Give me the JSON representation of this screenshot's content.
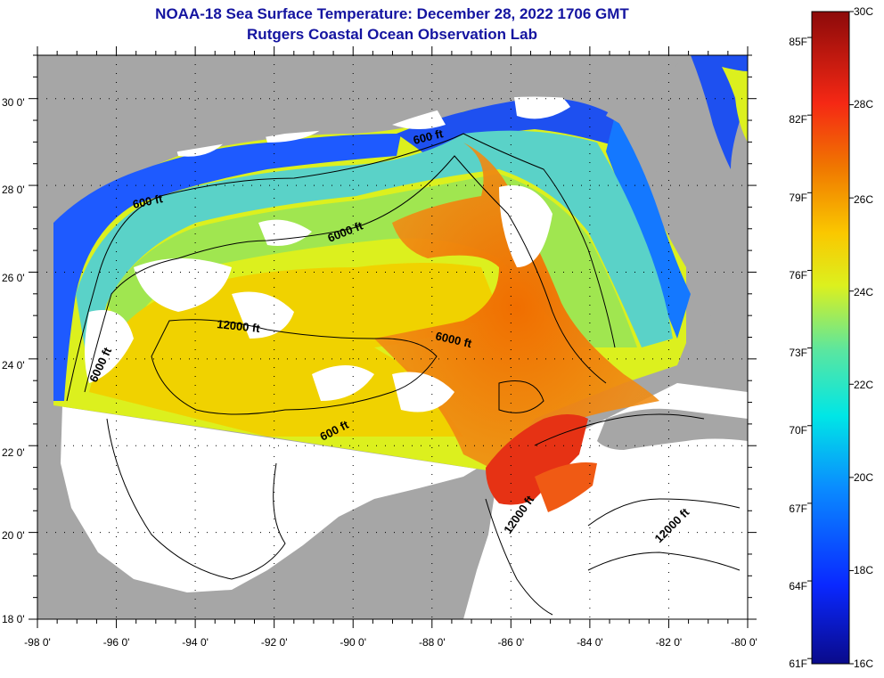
{
  "title": {
    "line1": "NOAA-18 Sea Surface Temperature:  December 28, 2022 1706 GMT",
    "line2": "Rutgers Coastal Ocean Observation Lab"
  },
  "axes": {
    "longitude_labels": [
      "-98 0'",
      "-96 0'",
      "-94 0'",
      "-92 0'",
      "-90 0'",
      "-88 0'",
      "-86 0'",
      "-84 0'",
      "-82 0'",
      "-80 0'"
    ],
    "latitude_labels": [
      "30 0'",
      "28 0'",
      "26 0'",
      "24 0'",
      "22 0'",
      "20 0'",
      "18 0'"
    ],
    "lon_range": [
      -98,
      -80
    ],
    "lat_range": [
      18,
      31
    ]
  },
  "contour_labels": [
    {
      "text": "600 ft",
      "id": "c600-west"
    },
    {
      "text": "600 ft",
      "id": "c600-north"
    },
    {
      "text": "6000 ft",
      "id": "c6000-north"
    },
    {
      "text": "12000 ft",
      "id": "c12000-center"
    },
    {
      "text": "6000 ft",
      "id": "c6000-east"
    },
    {
      "text": "6000 ft",
      "id": "c6000-west"
    },
    {
      "text": "600 ft",
      "id": "c600-south"
    },
    {
      "text": "12000 ft",
      "id": "c12000-yucatan"
    },
    {
      "text": "12000 ft",
      "id": "c12000-caribbean"
    }
  ],
  "colorbar": {
    "fahrenheit_labels": [
      "85F",
      "82F",
      "79F",
      "76F",
      "73F",
      "70F",
      "67F",
      "64F",
      "61F"
    ],
    "celsius_labels": [
      "30C",
      "28C",
      "26C",
      "24C",
      "22C",
      "20C",
      "18C",
      "16C"
    ],
    "range_c": [
      16,
      30
    ]
  },
  "colors": {
    "land": "#a6a6a6",
    "cloud": "#ffffff",
    "title": "#1414a0"
  }
}
